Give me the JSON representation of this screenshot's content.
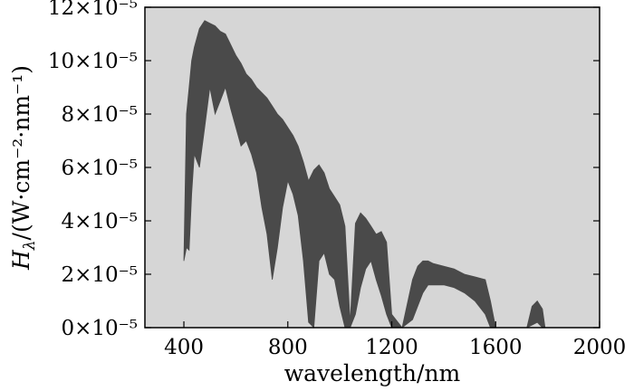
{
  "chart_data": {
    "type": "area",
    "xlabel": "wavelength/nm",
    "ylabel_main": "H",
    "ylabel_sub": "λ",
    "ylabel_units": "/(W·cm⁻²·nm⁻¹)",
    "xlim": [
      250,
      2000
    ],
    "ylim": [
      0,
      12
    ],
    "y_multiplier_text": "×10⁻⁵",
    "xticks": [
      400,
      800,
      1200,
      1600,
      2000
    ],
    "yticks": [
      0,
      2,
      4,
      6,
      8,
      10,
      12
    ],
    "plot_background": "#d6d6d6",
    "fill_color": "#4a4a4a",
    "grid": false,
    "series": [
      {
        "upper": [
          [
            400,
            2.5
          ],
          [
            410,
            8.0
          ],
          [
            420,
            9.0
          ],
          [
            430,
            10.0
          ],
          [
            440,
            10.5
          ],
          [
            460,
            11.2
          ],
          [
            480,
            11.5
          ],
          [
            500,
            11.4
          ],
          [
            520,
            11.3
          ],
          [
            540,
            11.1
          ],
          [
            560,
            11.0
          ],
          [
            580,
            10.6
          ],
          [
            600,
            10.2
          ],
          [
            620,
            9.9
          ],
          [
            640,
            9.5
          ],
          [
            660,
            9.3
          ],
          [
            680,
            9.0
          ],
          [
            700,
            8.8
          ],
          [
            720,
            8.6
          ],
          [
            740,
            8.3
          ],
          [
            760,
            8.0
          ],
          [
            780,
            7.8
          ],
          [
            800,
            7.5
          ],
          [
            820,
            7.2
          ],
          [
            840,
            6.8
          ],
          [
            860,
            6.2
          ],
          [
            880,
            5.5
          ],
          [
            900,
            5.9
          ],
          [
            920,
            6.1
          ],
          [
            940,
            5.8
          ],
          [
            960,
            5.2
          ],
          [
            980,
            4.9
          ],
          [
            1000,
            4.6
          ],
          [
            1020,
            3.8
          ],
          [
            1040,
            0.2
          ],
          [
            1060,
            3.9
          ],
          [
            1080,
            4.3
          ],
          [
            1100,
            4.1
          ],
          [
            1120,
            3.8
          ],
          [
            1140,
            3.5
          ],
          [
            1160,
            3.6
          ],
          [
            1180,
            3.2
          ],
          [
            1200,
            0.5
          ],
          [
            1240,
            0.0
          ],
          [
            1280,
            1.8
          ],
          [
            1300,
            2.3
          ],
          [
            1320,
            2.5
          ],
          [
            1340,
            2.5
          ],
          [
            1360,
            2.4
          ],
          [
            1400,
            2.3
          ],
          [
            1440,
            2.2
          ],
          [
            1480,
            2.0
          ],
          [
            1520,
            1.9
          ],
          [
            1560,
            1.8
          ],
          [
            1580,
            1.0
          ],
          [
            1600,
            0.0
          ],
          [
            1720,
            0.0
          ],
          [
            1740,
            0.8
          ],
          [
            1760,
            1.0
          ],
          [
            1780,
            0.7
          ],
          [
            1790,
            0.0
          ]
        ],
        "lower": [
          [
            400,
            2.5
          ],
          [
            410,
            3.0
          ],
          [
            420,
            2.9
          ],
          [
            430,
            5.0
          ],
          [
            440,
            6.5
          ],
          [
            460,
            6.0
          ],
          [
            480,
            7.5
          ],
          [
            500,
            9.0
          ],
          [
            520,
            8.0
          ],
          [
            540,
            8.5
          ],
          [
            560,
            9.0
          ],
          [
            580,
            8.2
          ],
          [
            600,
            7.5
          ],
          [
            620,
            6.8
          ],
          [
            640,
            7.0
          ],
          [
            660,
            6.5
          ],
          [
            680,
            5.8
          ],
          [
            700,
            4.5
          ],
          [
            720,
            3.5
          ],
          [
            740,
            1.8
          ],
          [
            760,
            3.0
          ],
          [
            780,
            4.5
          ],
          [
            800,
            5.5
          ],
          [
            820,
            5.0
          ],
          [
            840,
            4.2
          ],
          [
            860,
            2.5
          ],
          [
            880,
            0.2
          ],
          [
            900,
            0.0
          ],
          [
            920,
            2.5
          ],
          [
            940,
            2.8
          ],
          [
            960,
            2.0
          ],
          [
            980,
            1.8
          ],
          [
            1000,
            0.8
          ],
          [
            1020,
            0.0
          ],
          [
            1040,
            0.0
          ],
          [
            1060,
            0.5
          ],
          [
            1080,
            1.5
          ],
          [
            1100,
            2.2
          ],
          [
            1120,
            2.5
          ],
          [
            1140,
            1.8
          ],
          [
            1160,
            1.2
          ],
          [
            1180,
            0.5
          ],
          [
            1200,
            0.0
          ],
          [
            1240,
            0.0
          ],
          [
            1280,
            0.3
          ],
          [
            1300,
            0.8
          ],
          [
            1320,
            1.3
          ],
          [
            1340,
            1.6
          ],
          [
            1360,
            1.6
          ],
          [
            1400,
            1.6
          ],
          [
            1440,
            1.5
          ],
          [
            1480,
            1.3
          ],
          [
            1520,
            1.0
          ],
          [
            1560,
            0.5
          ],
          [
            1580,
            0.0
          ],
          [
            1600,
            0.0
          ],
          [
            1720,
            0.0
          ],
          [
            1740,
            0.1
          ],
          [
            1760,
            0.2
          ],
          [
            1780,
            0.0
          ],
          [
            1790,
            0.0
          ]
        ]
      }
    ]
  }
}
